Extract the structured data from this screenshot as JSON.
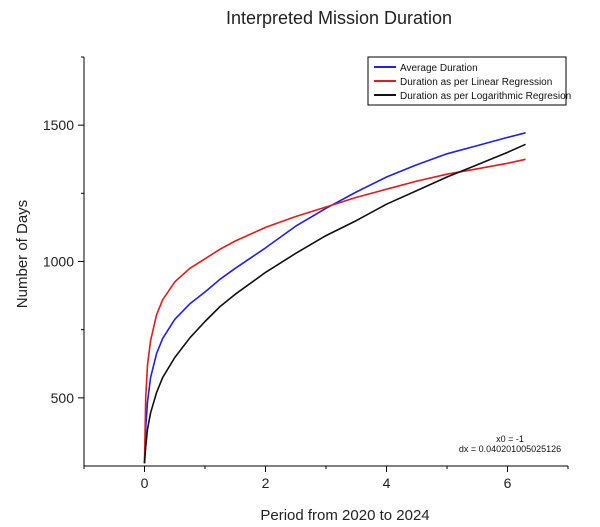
{
  "chart_data": {
    "type": "line",
    "title": "Interpreted Mission Duration",
    "xlabel": "Period from 2020 to 2024",
    "ylabel": "Number of Days",
    "xlim": [
      -1,
      7
    ],
    "ylim": [
      250,
      1750
    ],
    "xticks": [
      0,
      2,
      4,
      6
    ],
    "yticks": [
      500,
      1000,
      1500
    ],
    "grid": false,
    "legend_position": "top-right",
    "annotations": [
      "x0 = -1",
      "dx = 0.040201005025126"
    ],
    "x": [
      0,
      0.02,
      0.05,
      0.1,
      0.2,
      0.3,
      0.5,
      0.75,
      1.0,
      1.25,
      1.5,
      2.0,
      2.5,
      3.0,
      3.5,
      4.0,
      4.5,
      5.0,
      5.5,
      6.0,
      6.3
    ],
    "series": [
      {
        "name": "Average Duration",
        "color": "#1f1fe6",
        "values": [
          260,
          390,
          485,
          575,
          663,
          718,
          788,
          845,
          888,
          935,
          975,
          1050,
          1130,
          1195,
          1255,
          1310,
          1355,
          1395,
          1425,
          1455,
          1472
        ]
      },
      {
        "name": "Duration as per Linear Regression",
        "color": "#e01b1b",
        "values": [
          260,
          500,
          620,
          710,
          805,
          860,
          925,
          975,
          1010,
          1045,
          1075,
          1125,
          1165,
          1200,
          1235,
          1265,
          1295,
          1320,
          1340,
          1360,
          1375
        ]
      },
      {
        "name": "Duration as per Logarithmic Regresion",
        "color": "#111111",
        "values": [
          260,
          320,
          385,
          445,
          520,
          575,
          648,
          720,
          780,
          835,
          880,
          960,
          1030,
          1095,
          1150,
          1210,
          1260,
          1310,
          1355,
          1400,
          1430
        ]
      }
    ]
  }
}
